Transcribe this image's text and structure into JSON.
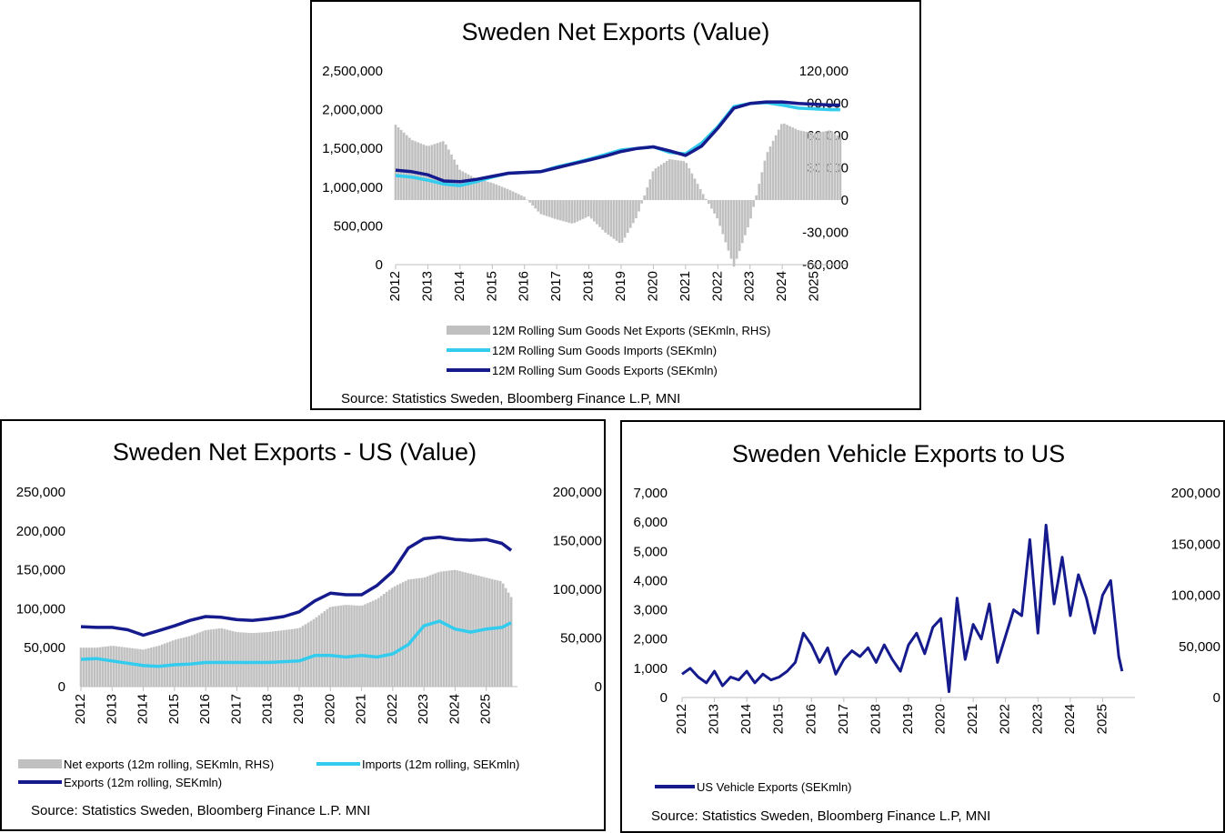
{
  "chart_data": [
    {
      "type": "bar",
      "title": "Sweden Net Exports (Value)",
      "source": "Source: Statistics Sweden, Bloomberg Finance L.P, MNI",
      "left_ticks": [
        "0",
        "500,000",
        "1,000,000",
        "1,500,000",
        "2,000,000",
        "2,500,000"
      ],
      "right_ticks": [
        "-60,000",
        "-30,000",
        "0",
        "30,000",
        "60,000",
        "90,000",
        "120,000"
      ],
      "x_ticks": [
        "2012",
        "2013",
        "2014",
        "2015",
        "2016",
        "2017",
        "2018",
        "2019",
        "2020",
        "2021",
        "2022",
        "2023",
        "2024",
        "2025"
      ],
      "ylim_left": [
        0,
        2500000
      ],
      "ylim_right": [
        -60000,
        120000
      ],
      "x_range": [
        2012,
        2026
      ],
      "legend": [
        {
          "label": "12M Rolling Sum Goods Net Exports (SEKmln, RHS)",
          "color": "#c0c0c0",
          "kind": "bar"
        },
        {
          "label": "12M Rolling Sum Goods Imports (SEKmln)",
          "color": "#33ccee",
          "kind": "line"
        },
        {
          "label": "12M Rolling Sum Goods Exports (SEKmln)",
          "color": "#151a8c",
          "kind": "line"
        }
      ],
      "series": [
        {
          "name": "12M Rolling Sum Goods Net Exports (SEKmln, RHS)",
          "axis": "right",
          "kind": "bar",
          "x": [
            2012.0,
            2012.5,
            2013.0,
            2013.5,
            2014.0,
            2014.5,
            2015.0,
            2015.5,
            2016.0,
            2016.5,
            2017.0,
            2017.5,
            2018.0,
            2018.5,
            2019.0,
            2019.5,
            2020.0,
            2020.5,
            2021.0,
            2021.5,
            2022.0,
            2022.5,
            2023.0,
            2023.5,
            2024.0,
            2024.5,
            2025.0,
            2025.5,
            2025.8
          ],
          "y": [
            70000,
            56000,
            50000,
            55000,
            28000,
            20000,
            16000,
            10000,
            3000,
            -13000,
            -18000,
            -22000,
            -15000,
            -30000,
            -41000,
            -15000,
            28000,
            38000,
            36000,
            8000,
            -18000,
            -62000,
            -20000,
            42000,
            72000,
            65000,
            62000,
            65000,
            58000
          ]
        },
        {
          "name": "12M Rolling Sum Goods Imports (SEKmln)",
          "axis": "left",
          "kind": "line",
          "x": [
            2012.0,
            2012.5,
            2013.0,
            2013.5,
            2014.0,
            2014.5,
            2015.0,
            2015.5,
            2016.0,
            2016.5,
            2017.0,
            2017.5,
            2018.0,
            2018.5,
            2019.0,
            2019.5,
            2020.0,
            2020.5,
            2021.0,
            2021.5,
            2022.0,
            2022.5,
            2023.0,
            2023.5,
            2024.0,
            2024.5,
            2025.0,
            2025.5,
            2025.8
          ],
          "y": [
            1150000,
            1130000,
            1090000,
            1040000,
            1020000,
            1070000,
            1130000,
            1180000,
            1190000,
            1200000,
            1260000,
            1310000,
            1360000,
            1420000,
            1480000,
            1500000,
            1520000,
            1450000,
            1430000,
            1570000,
            1780000,
            2040000,
            2080000,
            2090000,
            2060000,
            2020000,
            2010000,
            2000000,
            2000000
          ]
        },
        {
          "name": "12M Rolling Sum Goods Exports (SEKmln)",
          "axis": "left",
          "kind": "line",
          "x": [
            2012.0,
            2012.5,
            2013.0,
            2013.5,
            2014.0,
            2014.5,
            2015.0,
            2015.5,
            2016.0,
            2016.5,
            2017.0,
            2017.5,
            2018.0,
            2018.5,
            2019.0,
            2019.5,
            2020.0,
            2020.5,
            2021.0,
            2021.5,
            2022.0,
            2022.5,
            2023.0,
            2023.5,
            2024.0,
            2024.5,
            2025.0,
            2025.5,
            2025.8
          ],
          "y": [
            1220000,
            1200000,
            1160000,
            1080000,
            1070000,
            1100000,
            1140000,
            1180000,
            1190000,
            1200000,
            1250000,
            1300000,
            1350000,
            1400000,
            1460000,
            1500000,
            1520000,
            1470000,
            1410000,
            1530000,
            1760000,
            2020000,
            2080000,
            2100000,
            2100000,
            2080000,
            2070000,
            2060000,
            2060000
          ]
        }
      ]
    },
    {
      "type": "bar",
      "title": "Sweden Net Exports - US (Value)",
      "source": "Source: Statistics Sweden, Bloomberg Finance L.P. MNI",
      "left_ticks": [
        "0",
        "50,000",
        "100,000",
        "150,000",
        "200,000",
        "250,000"
      ],
      "right_ticks": [
        "0",
        "50,000",
        "100,000",
        "150,000",
        "200,000"
      ],
      "x_ticks": [
        "2012",
        "2013",
        "2014",
        "2015",
        "2016",
        "2017",
        "2018",
        "2019",
        "2020",
        "2021",
        "2022",
        "2023",
        "2024",
        "2025"
      ],
      "ylim_left": [
        0,
        250000
      ],
      "ylim_right": [
        0,
        200000
      ],
      "x_range": [
        2012,
        2026
      ],
      "legend": [
        {
          "label": "Net exports (12m rolling, SEKmln, RHS)",
          "color": "#c0c0c0",
          "kind": "bar"
        },
        {
          "label": "Imports (12m rolling, SEKmln)",
          "color": "#33ccee",
          "kind": "line"
        },
        {
          "label": "Exports (12m rolling, SEKmln)",
          "color": "#151a8c",
          "kind": "line"
        }
      ],
      "series": [
        {
          "name": "Net exports (12m rolling, SEKmln, RHS)",
          "axis": "right",
          "kind": "bar",
          "x": [
            2012.0,
            2012.5,
            2013.0,
            2013.5,
            2014.0,
            2014.5,
            2015.0,
            2015.5,
            2016.0,
            2016.5,
            2017.0,
            2017.5,
            2018.0,
            2018.5,
            2019.0,
            2019.5,
            2020.0,
            2020.5,
            2021.0,
            2021.5,
            2022.0,
            2022.5,
            2023.0,
            2023.5,
            2024.0,
            2024.5,
            2025.0,
            2025.5,
            2025.8
          ],
          "y": [
            40000,
            40000,
            42000,
            40000,
            38000,
            42000,
            48000,
            52000,
            58000,
            60000,
            56000,
            55000,
            56000,
            58000,
            60000,
            70000,
            82000,
            84000,
            83000,
            90000,
            102000,
            110000,
            112000,
            118000,
            120000,
            116000,
            112000,
            108000,
            92000
          ]
        },
        {
          "name": "Imports (12m rolling, SEKmln)",
          "axis": "left",
          "kind": "line",
          "x": [
            2012.0,
            2012.5,
            2013.0,
            2013.5,
            2014.0,
            2014.5,
            2015.0,
            2015.5,
            2016.0,
            2016.5,
            2017.0,
            2017.5,
            2018.0,
            2018.5,
            2019.0,
            2019.5,
            2020.0,
            2020.5,
            2021.0,
            2021.5,
            2022.0,
            2022.5,
            2023.0,
            2023.5,
            2024.0,
            2024.5,
            2025.0,
            2025.5,
            2025.8
          ],
          "y": [
            35000,
            36000,
            33000,
            30000,
            27000,
            26000,
            28000,
            29000,
            31000,
            31000,
            31000,
            31000,
            31000,
            32000,
            33000,
            40000,
            40000,
            38000,
            40000,
            38000,
            42000,
            54000,
            78000,
            84000,
            74000,
            70000,
            74000,
            76000,
            82000
          ]
        },
        {
          "name": "Exports (12m rolling, SEKmln)",
          "axis": "left",
          "kind": "line",
          "x": [
            2012.0,
            2012.5,
            2013.0,
            2013.5,
            2014.0,
            2014.5,
            2015.0,
            2015.5,
            2016.0,
            2016.5,
            2017.0,
            2017.5,
            2018.0,
            2018.5,
            2019.0,
            2019.5,
            2020.0,
            2020.5,
            2021.0,
            2021.5,
            2022.0,
            2022.5,
            2023.0,
            2023.5,
            2024.0,
            2024.5,
            2025.0,
            2025.5,
            2025.8
          ],
          "y": [
            77000,
            76000,
            76000,
            73000,
            66000,
            72000,
            78000,
            85000,
            90000,
            89000,
            86000,
            85000,
            87000,
            90000,
            96000,
            110000,
            120000,
            118000,
            118000,
            130000,
            148000,
            178000,
            190000,
            192000,
            189000,
            188000,
            189000,
            184000,
            175000
          ]
        }
      ]
    },
    {
      "type": "line",
      "title": "Sweden Vehicle Exports to US",
      "source": "Source: Statistics Sweden, Bloomberg Finance L.P, MNI",
      "left_ticks": [
        "0",
        "1,000",
        "2,000",
        "3,000",
        "4,000",
        "5,000",
        "6,000",
        "7,000"
      ],
      "right_ticks": [
        "0",
        "50,000",
        "100,000",
        "150,000",
        "200,000"
      ],
      "x_ticks": [
        "2012",
        "2013",
        "2014",
        "2015",
        "2016",
        "2017",
        "2018",
        "2019",
        "2020",
        "2021",
        "2022",
        "2023",
        "2024",
        "2025"
      ],
      "ylim_left": [
        0,
        7000
      ],
      "ylim_right": [
        0,
        200000
      ],
      "x_range": [
        2012,
        2026
      ],
      "legend": [
        {
          "label": "US Vehicle Exports (SEKmln)",
          "color": "#151a8c",
          "kind": "line"
        }
      ],
      "series": [
        {
          "name": "US Vehicle Exports (SEKmln)",
          "axis": "left",
          "kind": "line",
          "x": [
            2012.0,
            2012.25,
            2012.5,
            2012.75,
            2013.0,
            2013.25,
            2013.5,
            2013.75,
            2014.0,
            2014.25,
            2014.5,
            2014.75,
            2015.0,
            2015.25,
            2015.5,
            2015.75,
            2016.0,
            2016.25,
            2016.5,
            2016.75,
            2017.0,
            2017.25,
            2017.5,
            2017.75,
            2018.0,
            2018.25,
            2018.5,
            2018.75,
            2019.0,
            2019.25,
            2019.5,
            2019.75,
            2020.0,
            2020.25,
            2020.5,
            2020.75,
            2021.0,
            2021.25,
            2021.5,
            2021.75,
            2022.0,
            2022.25,
            2022.5,
            2022.75,
            2023.0,
            2023.25,
            2023.5,
            2023.75,
            2024.0,
            2024.25,
            2024.5,
            2024.75,
            2025.0,
            2025.25,
            2025.5,
            2025.6
          ],
          "y": [
            800,
            1000,
            700,
            500,
            900,
            400,
            700,
            600,
            900,
            500,
            800,
            600,
            700,
            900,
            1200,
            2200,
            1800,
            1200,
            1700,
            800,
            1300,
            1600,
            1400,
            1700,
            1200,
            1800,
            1300,
            900,
            1800,
            2200,
            1500,
            2400,
            2700,
            200,
            3400,
            1300,
            2500,
            2000,
            3200,
            1200,
            2100,
            3000,
            2800,
            5400,
            2200,
            5900,
            3200,
            4800,
            2800,
            4200,
            3400,
            2200,
            3500,
            4000,
            1400,
            900
          ]
        }
      ]
    }
  ]
}
